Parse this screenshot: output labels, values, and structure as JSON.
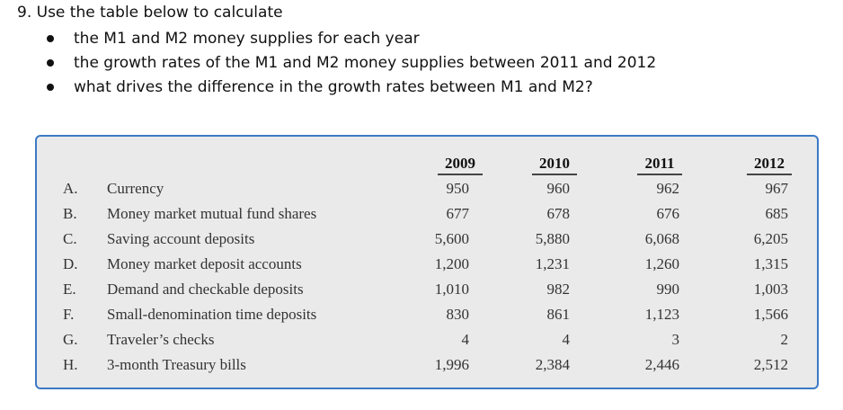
{
  "question": {
    "text": "9. Use the table below to calculate",
    "bullets": [
      "the M1 and M2 money supplies for each year",
      "the growth rates of the M1 and M2 money supplies between 2011 and 2012",
      "what drives the difference in the growth rates between M1 and M2?"
    ]
  },
  "table": {
    "years": [
      "2009",
      "2010",
      "2011",
      "2012"
    ],
    "rows": [
      {
        "letter": "A.",
        "label": "Currency",
        "values": [
          "950",
          "960",
          "962",
          "967"
        ]
      },
      {
        "letter": "B.",
        "label": "Money market mutual fund shares",
        "values": [
          "677",
          "678",
          "676",
          "685"
        ]
      },
      {
        "letter": "C.",
        "label": "Saving account deposits",
        "values": [
          "5,600",
          "5,880",
          "6,068",
          "6,205"
        ]
      },
      {
        "letter": "D.",
        "label": "Money market deposit accounts",
        "values": [
          "1,200",
          "1,231",
          "1,260",
          "1,315"
        ]
      },
      {
        "letter": "E.",
        "label": "Demand and checkable deposits",
        "values": [
          "1,010",
          "982",
          "990",
          "1,003"
        ]
      },
      {
        "letter": "F.",
        "label": "Small-denomination time deposits",
        "values": [
          "830",
          "861",
          "1,123",
          "1,566"
        ]
      },
      {
        "letter": "G.",
        "label": "Traveler’s checks",
        "values": [
          "4",
          "4",
          "3",
          "2"
        ]
      },
      {
        "letter": "H.",
        "label": "3-month Treasury bills",
        "values": [
          "1,996",
          "2,384",
          "2,446",
          "2,512"
        ]
      }
    ]
  },
  "colors": {
    "frame_border": "#3b7ac4",
    "frame_background": "#eaeaea"
  }
}
